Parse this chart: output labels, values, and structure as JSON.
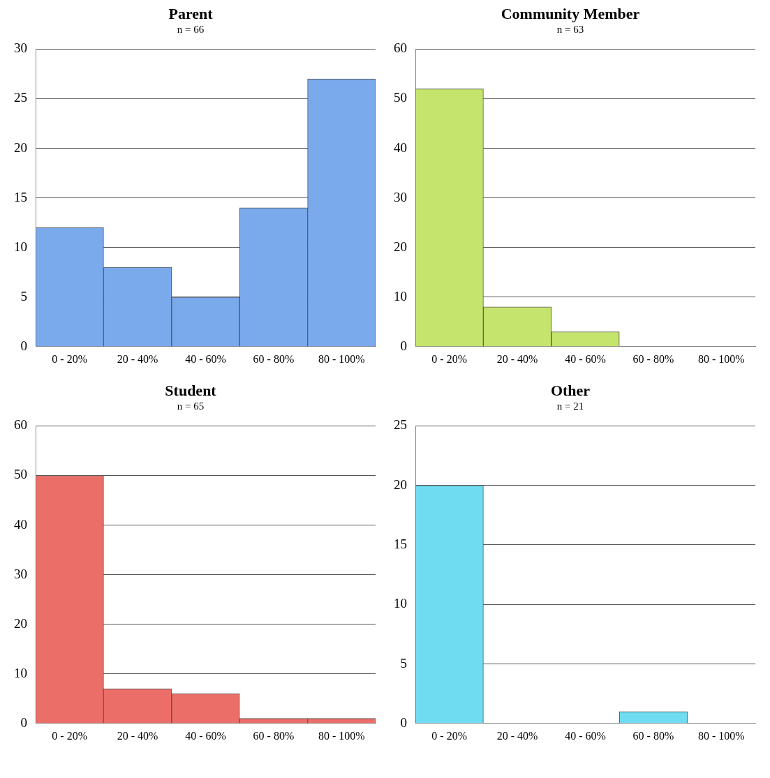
{
  "chart_data": [
    {
      "type": "bar",
      "title": "Parent",
      "subtitle": "n = 66",
      "categories": [
        "0 - 20%",
        "20 - 40%",
        "40 - 60%",
        "60 - 80%",
        "80 - 100%"
      ],
      "values": [
        12,
        8,
        5,
        14,
        27
      ],
      "color": "#7aa9ec",
      "ylim": [
        0,
        30
      ],
      "yticks": [
        0,
        5,
        10,
        15,
        20,
        25,
        30
      ],
      "grid": "y",
      "legend": false
    },
    {
      "type": "bar",
      "title": "Community Member",
      "subtitle": "n = 63",
      "categories": [
        "0 - 20%",
        "20 - 40%",
        "40 - 60%",
        "60 - 80%",
        "80 - 100%"
      ],
      "values": [
        52,
        8,
        3,
        0,
        0
      ],
      "color": "#c5e46e",
      "ylim": [
        0,
        60
      ],
      "yticks": [
        0,
        10,
        20,
        30,
        40,
        50,
        60
      ],
      "grid": "y",
      "legend": false
    },
    {
      "type": "bar",
      "title": "Student",
      "subtitle": "n = 65",
      "categories": [
        "0 - 20%",
        "20 - 40%",
        "40 - 60%",
        "60 - 80%",
        "80 - 100%"
      ],
      "values": [
        50,
        7,
        6,
        1,
        1
      ],
      "color": "#ec6e68",
      "ylim": [
        0,
        60
      ],
      "yticks": [
        0,
        10,
        20,
        30,
        40,
        50,
        60
      ],
      "grid": "y",
      "legend": false
    },
    {
      "type": "bar",
      "title": "Other",
      "subtitle": "n = 21",
      "categories": [
        "0 - 20%",
        "20 - 40%",
        "40 - 60%",
        "60 - 80%",
        "80 - 100%"
      ],
      "values": [
        20,
        0,
        0,
        1,
        0
      ],
      "color": "#6fdcf2",
      "ylim": [
        0,
        25
      ],
      "yticks": [
        0,
        5,
        10,
        15,
        20,
        25
      ],
      "grid": "y",
      "legend": false
    }
  ]
}
